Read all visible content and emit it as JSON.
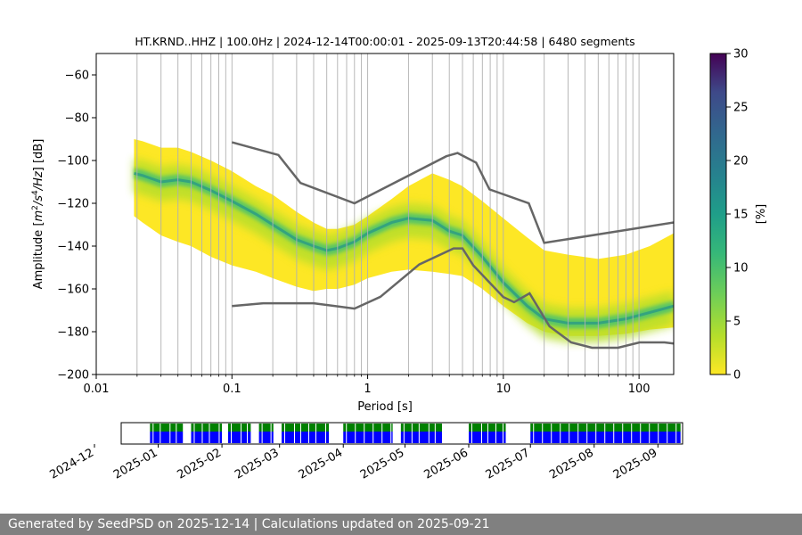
{
  "chart_data": [
    {
      "type": "heatmap",
      "title": "HT.KRND..HHZ | 100.0Hz | 2024-12-14T00:00:01 - 2025-09-13T20:44:58 | 6480 segments",
      "xlabel": "Period [s]",
      "ylabel": "Amplitude [m²/s⁴/Hz] [dB]",
      "xscale": "log",
      "xlim": [
        0.01,
        180
      ],
      "ylim": [
        -200,
        -50
      ],
      "xticks": [
        {
          "value": 0.01,
          "label": "0.01"
        },
        {
          "value": 0.1,
          "label": "0.1"
        },
        {
          "value": 1,
          "label": "1"
        },
        {
          "value": 10,
          "label": "10"
        },
        {
          "value": 100,
          "label": "100"
        }
      ],
      "yticks": [
        -200,
        -180,
        -160,
        -140,
        -120,
        -100,
        -80,
        -60
      ],
      "grid": "vertical gridlines at log-spaced periods",
      "colorbar": {
        "label": "[%]",
        "min": 0,
        "max": 30,
        "ticks": [
          0,
          5,
          10,
          15,
          20,
          25,
          30
        ],
        "colormap": "viridis_r"
      },
      "mode_curve": {
        "period": [
          0.019,
          0.022,
          0.03,
          0.04,
          0.05,
          0.07,
          0.1,
          0.15,
          0.2,
          0.3,
          0.4,
          0.5,
          0.6,
          0.8,
          1.0,
          1.5,
          2.0,
          3.0,
          4.0,
          5.0,
          7.0,
          10,
          15,
          20,
          30,
          50,
          80,
          120,
          180
        ],
        "db": [
          -106,
          -107,
          -110,
          -109,
          -110,
          -114,
          -119,
          -125,
          -130,
          -137,
          -140,
          -142,
          -141,
          -138,
          -134,
          -129,
          -127,
          -128,
          -133,
          -135,
          -145,
          -157,
          -168,
          -174,
          -176,
          -176,
          -174,
          -171,
          -168
        ],
        "lower_db": [
          -96,
          -97,
          -100,
          -100,
          -102,
          -106,
          -111,
          -118,
          -122,
          -130,
          -135,
          -138,
          -138,
          -136,
          -132,
          -124,
          -118,
          -112,
          -115,
          -118,
          -125,
          -133,
          -142,
          -148,
          -150,
          -152,
          -150,
          -146,
          -140
        ],
        "upper_db": [
          -124,
          -127,
          -133,
          -136,
          -138,
          -143,
          -147,
          -150,
          -153,
          -157,
          -159,
          -158,
          -158,
          -156,
          -153,
          -150,
          -149,
          -150,
          -151,
          -152,
          -158,
          -166,
          -174,
          -178,
          -180,
          -180,
          -179,
          -177,
          -176
        ]
      },
      "nhnm": {
        "name": "NHNM",
        "period": [
          0.1,
          0.22,
          0.32,
          0.8,
          3.8,
          4.6,
          6.3,
          7.9,
          15.4,
          20,
          354.8
        ],
        "db": [
          -91.5,
          -97.4,
          -110.5,
          -120,
          -98,
          -96.5,
          -101,
          -113.5,
          -120,
          -138.5,
          -126
        ]
      },
      "nlnm": {
        "name": "NLNM",
        "period": [
          0.1,
          0.17,
          0.4,
          0.8,
          1.24,
          2.4,
          4.3,
          5,
          6,
          10,
          12,
          15.6,
          21.9,
          31.6,
          45,
          70,
          101,
          154,
          180
        ],
        "db": [
          -168,
          -166.7,
          -166.7,
          -169.2,
          -163.7,
          -148.6,
          -141.1,
          -141.1,
          -149,
          -163.8,
          -166.2,
          -162.1,
          -177.5,
          -185,
          -187.5,
          -187.5,
          -185,
          -185,
          -185.5
        ]
      }
    },
    {
      "type": "timeline",
      "date_range": [
        "2024-12-14",
        "2025-09-13"
      ],
      "xticks": [
        "2024-12",
        "2025-01",
        "2025-02",
        "2025-03",
        "2025-04",
        "2025-05",
        "2025-06",
        "2025-07",
        "2025-08",
        "2025-09"
      ],
      "series": [
        {
          "color": "#008000",
          "spans": [
            [
              "2024-12-28",
              "2025-01-13"
            ],
            [
              "2025-01-17",
              "2025-02-01"
            ],
            [
              "2025-02-04",
              "2025-02-15"
            ],
            [
              "2025-02-19",
              "2025-02-26"
            ],
            [
              "2025-03-02",
              "2025-03-25"
            ],
            [
              "2025-04-01",
              "2025-04-25"
            ],
            [
              "2025-04-29",
              "2025-05-19"
            ],
            [
              "2025-06-01",
              "2025-06-19"
            ],
            [
              "2025-07-01",
              "2025-09-12"
            ]
          ]
        },
        {
          "color": "#0000ff",
          "spans": [
            [
              "2024-12-28",
              "2025-01-13"
            ],
            [
              "2025-01-17",
              "2025-02-01"
            ],
            [
              "2025-02-04",
              "2025-02-15"
            ],
            [
              "2025-02-19",
              "2025-02-26"
            ],
            [
              "2025-03-02",
              "2025-03-25"
            ],
            [
              "2025-04-01",
              "2025-04-25"
            ],
            [
              "2025-04-29",
              "2025-05-19"
            ],
            [
              "2025-06-01",
              "2025-06-19"
            ],
            [
              "2025-07-01",
              "2025-09-12"
            ]
          ]
        }
      ]
    }
  ],
  "footer": {
    "text": "Generated by SeedPSD on 2025-12-14 | Calculations updated on 2025-09-21"
  }
}
